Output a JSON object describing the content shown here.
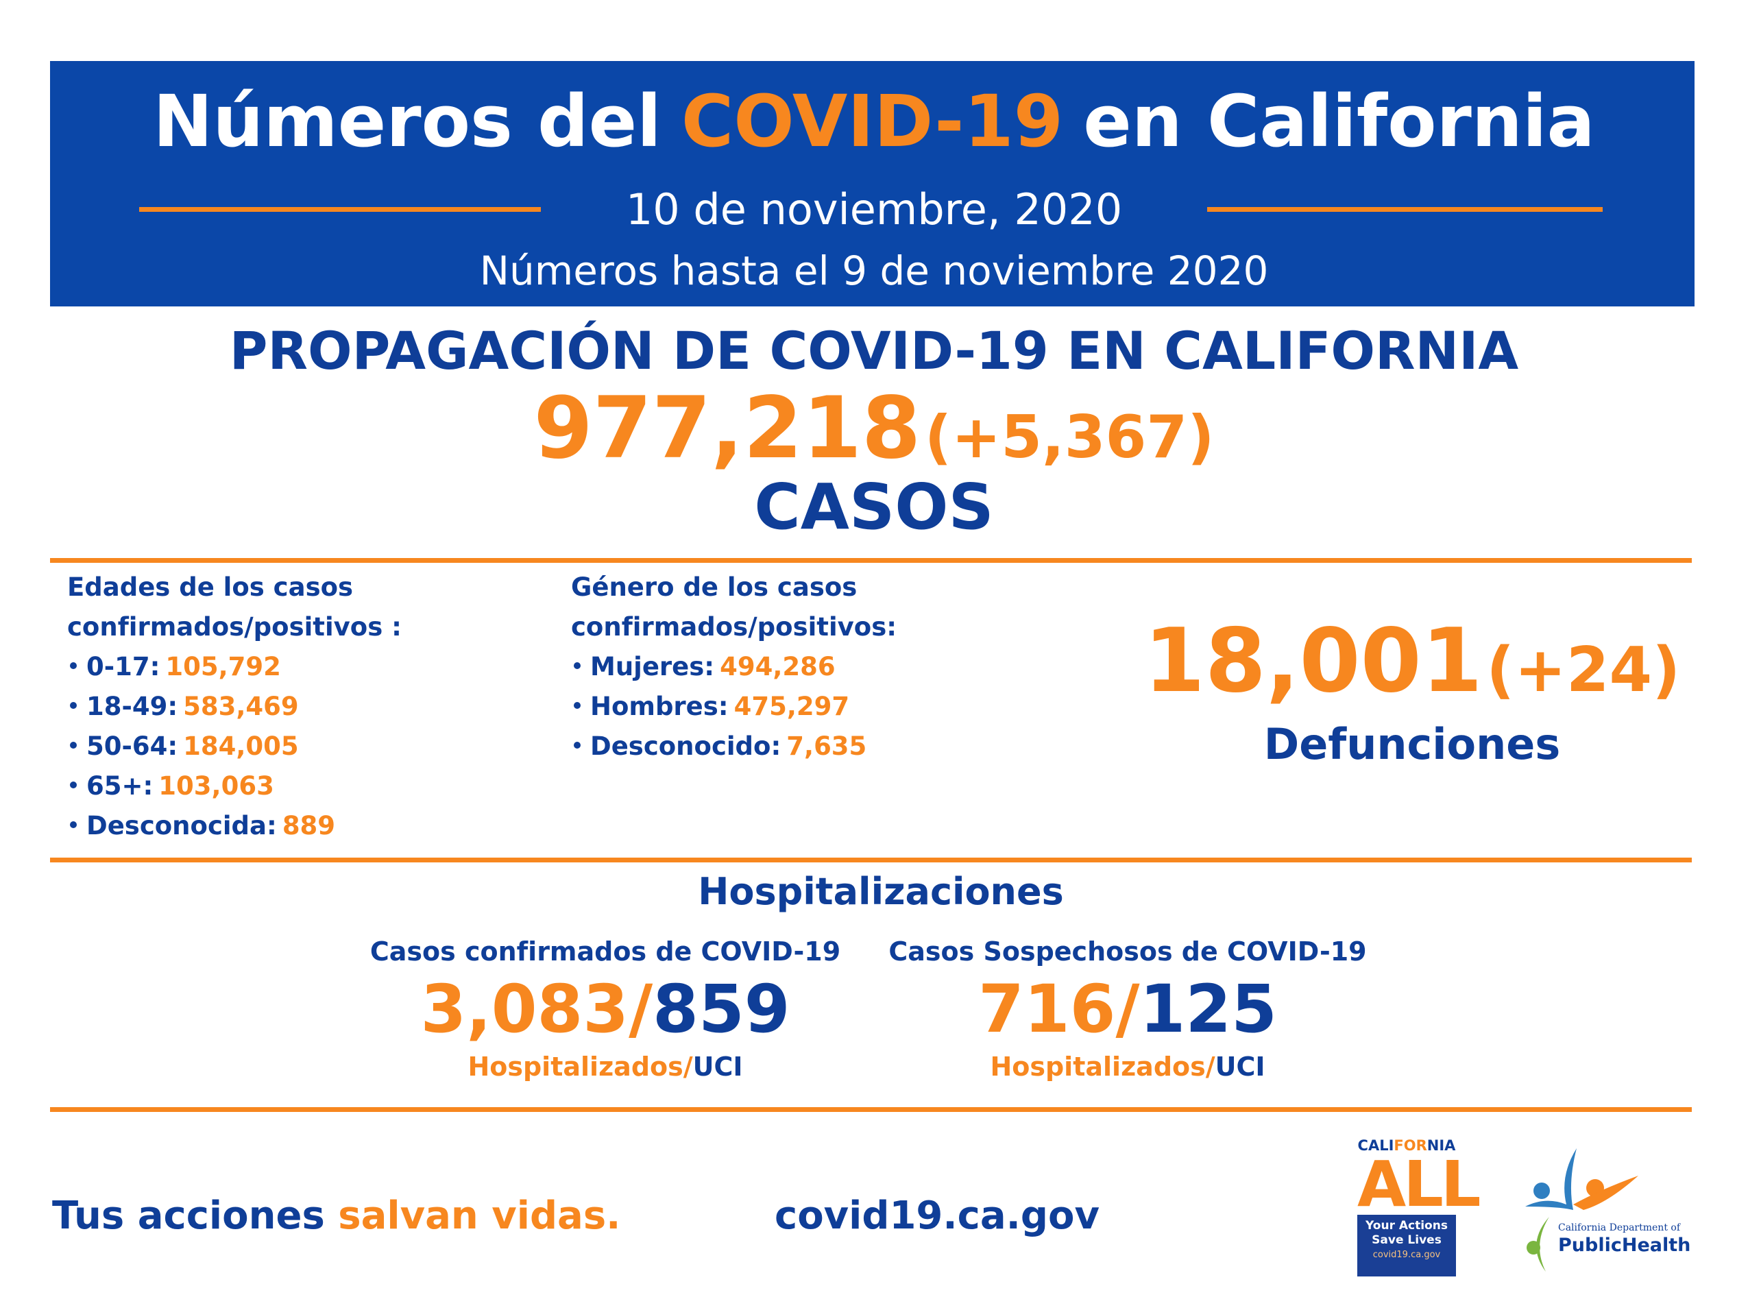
{
  "header": {
    "title": [
      "Números del",
      "COVID-19",
      "en California"
    ],
    "date": "10 de noviembre, 2020",
    "as_of": "Números hasta el 9 de noviembre 2020"
  },
  "spread": {
    "heading": "PROPAGACIÓN DE COVID-19 EN CALIFORNIA",
    "cases": "977,218",
    "change": "(+5,367)",
    "label": "CASOS"
  },
  "ages": {
    "heading": [
      "Edades de los casos",
      "confirmados/positivos :"
    ],
    "items": [
      {
        "label": "0-17:",
        "value": "105,792"
      },
      {
        "label": "18-49:",
        "value": "583,469"
      },
      {
        "label": "50-64:",
        "value": "184,005"
      },
      {
        "label": "65+:",
        "value": "103,063"
      },
      {
        "label": "Desconocida:",
        "value": "889"
      }
    ]
  },
  "gender": {
    "heading": [
      "Género de los casos",
      "confirmados/positivos:"
    ],
    "items": [
      {
        "label": "Mujeres:",
        "value": "494,286"
      },
      {
        "label": "Hombres:",
        "value": "475,297"
      },
      {
        "label": "Desconocido:",
        "value": "7,635"
      }
    ]
  },
  "deaths": {
    "value": "18,001",
    "change": "(+24)",
    "label": "Defunciones"
  },
  "hospitalizations": {
    "title": "Hospitalizaciones",
    "separator": "/",
    "groups": [
      {
        "label": "Casos confirmados de COVID-19",
        "hospitalized": "3,083",
        "icu": "859",
        "hospitalized_label": "Hospitalizados",
        "icu_label": "UCI"
      },
      {
        "label": "Casos Sospechosos de COVID-19",
        "hospitalized": "716",
        "icu": "125",
        "hospitalized_label": "Hospitalizados",
        "icu_label": "UCI"
      }
    ]
  },
  "footer": {
    "tagline": [
      "Tus acciones",
      "salvan vidas."
    ],
    "url": "covid19.ca.gov"
  },
  "logos": {
    "ca_all": {
      "top": [
        "CALI",
        "FOR",
        "NIA"
      ],
      "big": "ALL",
      "line1": "Your Actions",
      "line2": "Save Lives",
      "url": "covid19.ca.gov"
    },
    "cdph": {
      "line1": "California Department of",
      "line2": "PublicHealth"
    }
  }
}
